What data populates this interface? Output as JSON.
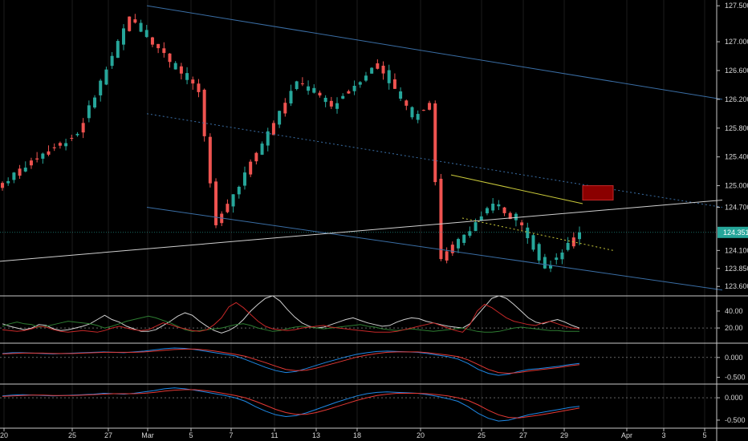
{
  "colors": {
    "background": "#000000",
    "up": "#26a69a",
    "down": "#ef5350",
    "grid": "#1c1c1c",
    "separator": "#c8c8c8",
    "channel": "#3a6ea5",
    "white_line": "#cfcfcf",
    "yellow": "#c9c93a",
    "price_tag": "#26a69a",
    "rsi_green": "#2e7d32",
    "rsi_red": "#c62828",
    "rsi_white": "#cfcfcf",
    "macd_blue": "#1e88e5",
    "macd_red": "#e53935"
  },
  "chart_data": [
    {
      "type": "candlestick",
      "pane": "price",
      "ylim": [
        123.48,
        127.58
      ],
      "y_ticks": [
        "127.500",
        "127.000",
        "126.600",
        "126.200",
        "125.800",
        "125.400",
        "125.000",
        "124.700",
        "124.100",
        "123.850",
        "123.600"
      ],
      "x_ticks": [
        "20",
        "25",
        "27",
        "Mar",
        "5",
        "7",
        "11",
        "13",
        "18",
        "20",
        "25",
        "27",
        "29",
        "Apr",
        "3",
        "5"
      ],
      "last_price": "124.351",
      "segments": [
        {
          "start": 124.97,
          "end": 125.35,
          "high": 125.55,
          "low": 124.9,
          "count": 6
        },
        {
          "start": 125.35,
          "end": 125.72,
          "high": 126.0,
          "low": 125.1,
          "count": 8
        },
        {
          "start": 125.72,
          "end": 127.35,
          "high": 127.46,
          "low": 125.6,
          "count": 9
        },
        {
          "start": 127.35,
          "end": 126.3,
          "high": 127.4,
          "low": 126.1,
          "count": 12
        },
        {
          "start": 126.3,
          "end": 124.45,
          "high": 126.35,
          "low": 124.25,
          "count": 3
        },
        {
          "start": 124.45,
          "end": 126.45,
          "high": 126.55,
          "low": 124.2,
          "count": 14
        },
        {
          "start": 126.45,
          "end": 126.1,
          "high": 126.65,
          "low": 125.95,
          "count": 6
        },
        {
          "start": 126.1,
          "end": 126.7,
          "high": 126.8,
          "low": 126.0,
          "count": 8
        },
        {
          "start": 126.7,
          "end": 125.95,
          "high": 126.75,
          "low": 125.85,
          "count": 6
        },
        {
          "start": 125.95,
          "end": 126.15,
          "high": 126.2,
          "low": 125.8,
          "count": 3
        },
        {
          "start": 126.15,
          "end": 123.98,
          "high": 126.2,
          "low": 123.95,
          "count": 2
        },
        {
          "start": 123.98,
          "end": 124.75,
          "high": 125.0,
          "low": 123.9,
          "count": 9
        },
        {
          "start": 124.75,
          "end": 124.45,
          "high": 124.8,
          "low": 124.2,
          "count": 5
        },
        {
          "start": 124.45,
          "end": 123.85,
          "high": 124.5,
          "low": 123.75,
          "count": 4
        },
        {
          "start": 123.85,
          "end": 124.35,
          "high": 124.65,
          "low": 123.8,
          "count": 6
        }
      ],
      "annotations": [
        {
          "kind": "line",
          "name": "upper-channel",
          "from": [
            "Feb 27",
            127.5
          ],
          "to": [
            "Apr 5",
            126.2
          ]
        },
        {
          "kind": "line",
          "name": "lower-channel",
          "from": [
            "Feb 27",
            124.7
          ],
          "to": [
            "Apr 5",
            123.55
          ]
        },
        {
          "kind": "dotted-line",
          "name": "mid-channel",
          "from": [
            "Feb 27",
            126.0
          ],
          "to": [
            "Apr 5",
            124.7
          ]
        },
        {
          "kind": "line",
          "name": "white-trendline",
          "from": [
            "Feb 20",
            123.95
          ],
          "to": [
            "Apr 5",
            124.8
          ]
        },
        {
          "kind": "line",
          "name": "yellow-solid",
          "from": [
            "Mar 21",
            125.15
          ],
          "to": [
            "Mar 28",
            124.75
          ]
        },
        {
          "kind": "dotted-line",
          "name": "yellow-dotted",
          "from": [
            "Mar 22",
            124.55
          ],
          "to": [
            "Mar 29",
            124.1
          ]
        },
        {
          "kind": "box",
          "name": "red-box",
          "x_range": [
            "Mar 28",
            "Mar 29"
          ],
          "y_range": [
            124.8,
            125.0
          ]
        }
      ]
    },
    {
      "type": "line",
      "pane": "oscillator-1",
      "ylim": [
        3,
        57
      ],
      "y_ticks": [
        "40.00",
        "20.00"
      ],
      "reference": 20,
      "series": [
        {
          "color": "rsi_white",
          "values": [
            25,
            22,
            20,
            18,
            20,
            24,
            23,
            19,
            17,
            18,
            20,
            22,
            25,
            30,
            35,
            30,
            27,
            22,
            19,
            16,
            16,
            18,
            23,
            28,
            34,
            38,
            35,
            28,
            22,
            17,
            14,
            17,
            22,
            30,
            40,
            48,
            55,
            58,
            52,
            42,
            33,
            26,
            22,
            20,
            21,
            24,
            27,
            30,
            32,
            29,
            26,
            24,
            22,
            23,
            27,
            30,
            32,
            31,
            28,
            26,
            24,
            22,
            21,
            20,
            25,
            35,
            45,
            55,
            58,
            55,
            48,
            40,
            32,
            27,
            25,
            28,
            30,
            27,
            23,
            20
          ]
        },
        {
          "color": "rsi_green",
          "values": [
            22,
            25,
            27,
            25,
            24,
            21,
            22,
            24,
            26,
            28,
            27,
            26,
            25,
            23,
            20,
            22,
            25,
            28,
            30,
            32,
            34,
            32,
            29,
            26,
            22,
            18,
            16,
            17,
            18,
            19,
            20,
            22,
            24,
            25,
            23,
            20,
            18,
            16,
            17,
            19,
            21,
            22,
            21,
            20,
            19,
            20,
            21,
            22,
            23,
            24,
            22,
            21,
            19,
            18,
            17,
            18,
            19,
            18,
            17,
            16,
            17,
            18,
            19,
            20,
            18,
            16,
            15,
            15,
            16,
            18,
            20,
            21,
            20,
            19,
            18,
            17,
            17,
            16,
            16,
            16
          ]
        },
        {
          "color": "rsi_red",
          "values": [
            18,
            17,
            16,
            17,
            19,
            22,
            21,
            18,
            16,
            15,
            16,
            17,
            16,
            15,
            17,
            20,
            22,
            20,
            18,
            17,
            18,
            22,
            26,
            24,
            21,
            19,
            17,
            16,
            18,
            24,
            32,
            45,
            50,
            44,
            36,
            28,
            22,
            19,
            18,
            17,
            18,
            20,
            21,
            22,
            23,
            21,
            20,
            19,
            18,
            17,
            16,
            15,
            15,
            15,
            16,
            18,
            20,
            22,
            24,
            26,
            23,
            20,
            17,
            15,
            24,
            40,
            48,
            44,
            38,
            32,
            28,
            26,
            24,
            23,
            26,
            28,
            25,
            22,
            20,
            19
          ]
        }
      ]
    },
    {
      "type": "line",
      "pane": "oscillator-2",
      "ylim": [
        -0.65,
        0.32
      ],
      "y_ticks": [
        "0.000",
        "-0.500"
      ],
      "reference": 0.0,
      "series": [
        {
          "color": "macd_blue",
          "values": [
            0.1,
            0.12,
            0.12,
            0.11,
            0.1,
            0.09,
            0.1,
            0.11,
            0.12,
            0.13,
            0.14,
            0.13,
            0.12,
            0.14,
            0.16,
            0.19,
            0.22,
            0.24,
            0.23,
            0.2,
            0.16,
            0.12,
            0.08,
            0.04,
            -0.05,
            -0.15,
            -0.25,
            -0.33,
            -0.38,
            -0.35,
            -0.28,
            -0.2,
            -0.12,
            -0.05,
            0.02,
            0.08,
            0.12,
            0.15,
            0.16,
            0.15,
            0.14,
            0.13,
            0.1,
            0.06,
            0.02,
            -0.04,
            -0.15,
            -0.3,
            -0.4,
            -0.45,
            -0.42,
            -0.35,
            -0.3,
            -0.28,
            -0.25,
            -0.22,
            -0.18,
            -0.15
          ]
        },
        {
          "color": "macd_red",
          "values": [
            0.09,
            0.1,
            0.11,
            0.11,
            0.11,
            0.1,
            0.1,
            0.1,
            0.11,
            0.12,
            0.13,
            0.13,
            0.13,
            0.13,
            0.14,
            0.16,
            0.18,
            0.2,
            0.21,
            0.21,
            0.19,
            0.16,
            0.12,
            0.08,
            0.03,
            -0.05,
            -0.13,
            -0.22,
            -0.3,
            -0.33,
            -0.32,
            -0.27,
            -0.2,
            -0.13,
            -0.06,
            0.01,
            0.06,
            0.1,
            0.13,
            0.14,
            0.14,
            0.14,
            0.12,
            0.09,
            0.06,
            0.02,
            -0.06,
            -0.18,
            -0.3,
            -0.38,
            -0.4,
            -0.38,
            -0.34,
            -0.31,
            -0.28,
            -0.25,
            -0.21,
            -0.18
          ]
        }
      ]
    },
    {
      "type": "line",
      "pane": "oscillator-3",
      "ylim": [
        -0.68,
        0.27
      ],
      "y_ticks": [
        "0.000",
        "-0.500"
      ],
      "reference": 0.0,
      "series": [
        {
          "color": "macd_blue",
          "values": [
            0.04,
            0.06,
            0.07,
            0.06,
            0.05,
            0.04,
            0.05,
            0.06,
            0.07,
            0.08,
            0.1,
            0.09,
            0.08,
            0.1,
            0.13,
            0.16,
            0.2,
            0.22,
            0.2,
            0.17,
            0.13,
            0.09,
            0.05,
            0.0,
            -0.08,
            -0.2,
            -0.3,
            -0.38,
            -0.42,
            -0.4,
            -0.34,
            -0.26,
            -0.18,
            -0.1,
            -0.03,
            0.04,
            0.09,
            0.12,
            0.13,
            0.12,
            0.11,
            0.1,
            0.07,
            0.03,
            -0.02,
            -0.08,
            -0.2,
            -0.35,
            -0.46,
            -0.52,
            -0.5,
            -0.44,
            -0.38,
            -0.34,
            -0.3,
            -0.26,
            -0.22,
            -0.19
          ]
        },
        {
          "color": "macd_red",
          "values": [
            0.03,
            0.04,
            0.05,
            0.06,
            0.06,
            0.05,
            0.05,
            0.05,
            0.06,
            0.07,
            0.08,
            0.09,
            0.09,
            0.09,
            0.1,
            0.12,
            0.15,
            0.17,
            0.18,
            0.18,
            0.16,
            0.13,
            0.09,
            0.05,
            0.0,
            -0.08,
            -0.17,
            -0.26,
            -0.33,
            -0.37,
            -0.37,
            -0.33,
            -0.27,
            -0.2,
            -0.13,
            -0.06,
            0.0,
            0.05,
            0.08,
            0.1,
            0.1,
            0.1,
            0.09,
            0.07,
            0.04,
            0.0,
            -0.06,
            -0.16,
            -0.28,
            -0.38,
            -0.44,
            -0.45,
            -0.42,
            -0.39,
            -0.35,
            -0.31,
            -0.27,
            -0.23
          ]
        }
      ]
    }
  ]
}
